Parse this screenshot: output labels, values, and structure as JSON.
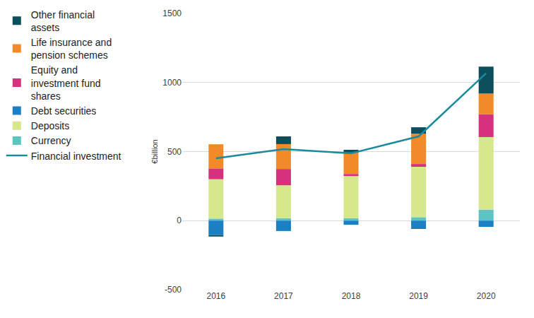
{
  "chart_data": {
    "type": "bar",
    "stacked": true,
    "y_label": "€billion",
    "categories": [
      "2016",
      "2017",
      "2018",
      "2019",
      "2020"
    ],
    "ylim": [
      -500,
      1500
    ],
    "yticks": [
      -500,
      0,
      500,
      1000,
      1500
    ],
    "grid": true,
    "legend": "left",
    "series": [
      {
        "name": "Other financial assets",
        "type": "bar",
        "color": "#0b4f5c",
        "values": [
          -10,
          56,
          20,
          46,
          195
        ]
      },
      {
        "name": "Life insurance and pension schemes",
        "type": "bar",
        "color": "#f28a2a",
        "values": [
          175,
          180,
          155,
          220,
          150
        ]
      },
      {
        "name": "Equity and investment fund shares",
        "type": "bar",
        "color": "#d6317c",
        "values": [
          78,
          118,
          15,
          20,
          165
        ]
      },
      {
        "name": "Debt securities",
        "type": "bar",
        "color": "#1b7fc3",
        "values": [
          -105,
          -75,
          -30,
          -60,
          -45
        ]
      },
      {
        "name": "Deposits",
        "type": "bar",
        "color": "#d5e88c",
        "values": [
          285,
          238,
          305,
          365,
          525
        ]
      },
      {
        "name": "Currency",
        "type": "bar",
        "color": "#5cc5c1",
        "values": [
          15,
          18,
          18,
          25,
          80
        ]
      },
      {
        "name": "Financial investment",
        "type": "line",
        "color": "#1b8a9c",
        "values": [
          451,
          518,
          487,
          610,
          1067
        ]
      }
    ]
  }
}
